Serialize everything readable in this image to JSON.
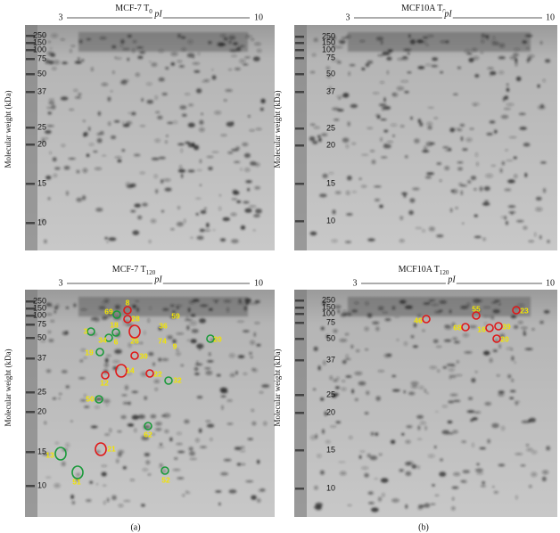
{
  "panels": [
    {
      "title": {
        "text": "MCF-7 T",
        "sub": "0"
      },
      "pi_axis": {
        "start": "3",
        "label": "pI",
        "end": "10"
      },
      "mw_ticks": [
        "250",
        "150",
        "100",
        "75",
        "50",
        "37",
        "25",
        "20",
        "15",
        "10"
      ],
      "y_label": "Molecular weight (kDa)",
      "spots": []
    },
    {
      "title": {
        "text": "MCF10A T",
        "sub": "0"
      },
      "pi_axis": {
        "start": "3",
        "label": "pI",
        "end": "10"
      },
      "mw_ticks": [
        "250",
        "150",
        "100",
        "75",
        "50",
        "37",
        "25",
        "20",
        "15",
        "10"
      ],
      "y_label": "Molecular weight (kDa)",
      "spots": []
    },
    {
      "title": {
        "text": "MCF-7 T",
        "sub": "120"
      },
      "pi_axis": {
        "start": "3",
        "label": "pI",
        "end": "10"
      },
      "mw_ticks": [
        "250",
        "150",
        "100",
        "75",
        "50",
        "37",
        "25",
        "20",
        "15",
        "10"
      ],
      "y_label": "Molecular weight (kDa)",
      "spots": [
        "8",
        "69",
        "28",
        "3",
        "36",
        "59",
        "26",
        "34",
        "18",
        "6",
        "74",
        "9",
        "20",
        "19",
        "30",
        "14",
        "22",
        "12",
        "32",
        "50",
        "62",
        "21",
        "13",
        "51",
        "52"
      ]
    },
    {
      "title": {
        "text": "MCF10A T",
        "sub": "120"
      },
      "pi_axis": {
        "start": "3",
        "label": "pI",
        "end": "10"
      },
      "mw_ticks": [
        "250",
        "150",
        "100",
        "75",
        "50",
        "37",
        "25",
        "20",
        "15",
        "10"
      ],
      "y_label": "Molecular weight (kDa)",
      "spots": [
        "46",
        "55",
        "23",
        "68",
        "16",
        "39",
        "20"
      ]
    }
  ],
  "captions": [
    "(a)",
    "(b)"
  ]
}
